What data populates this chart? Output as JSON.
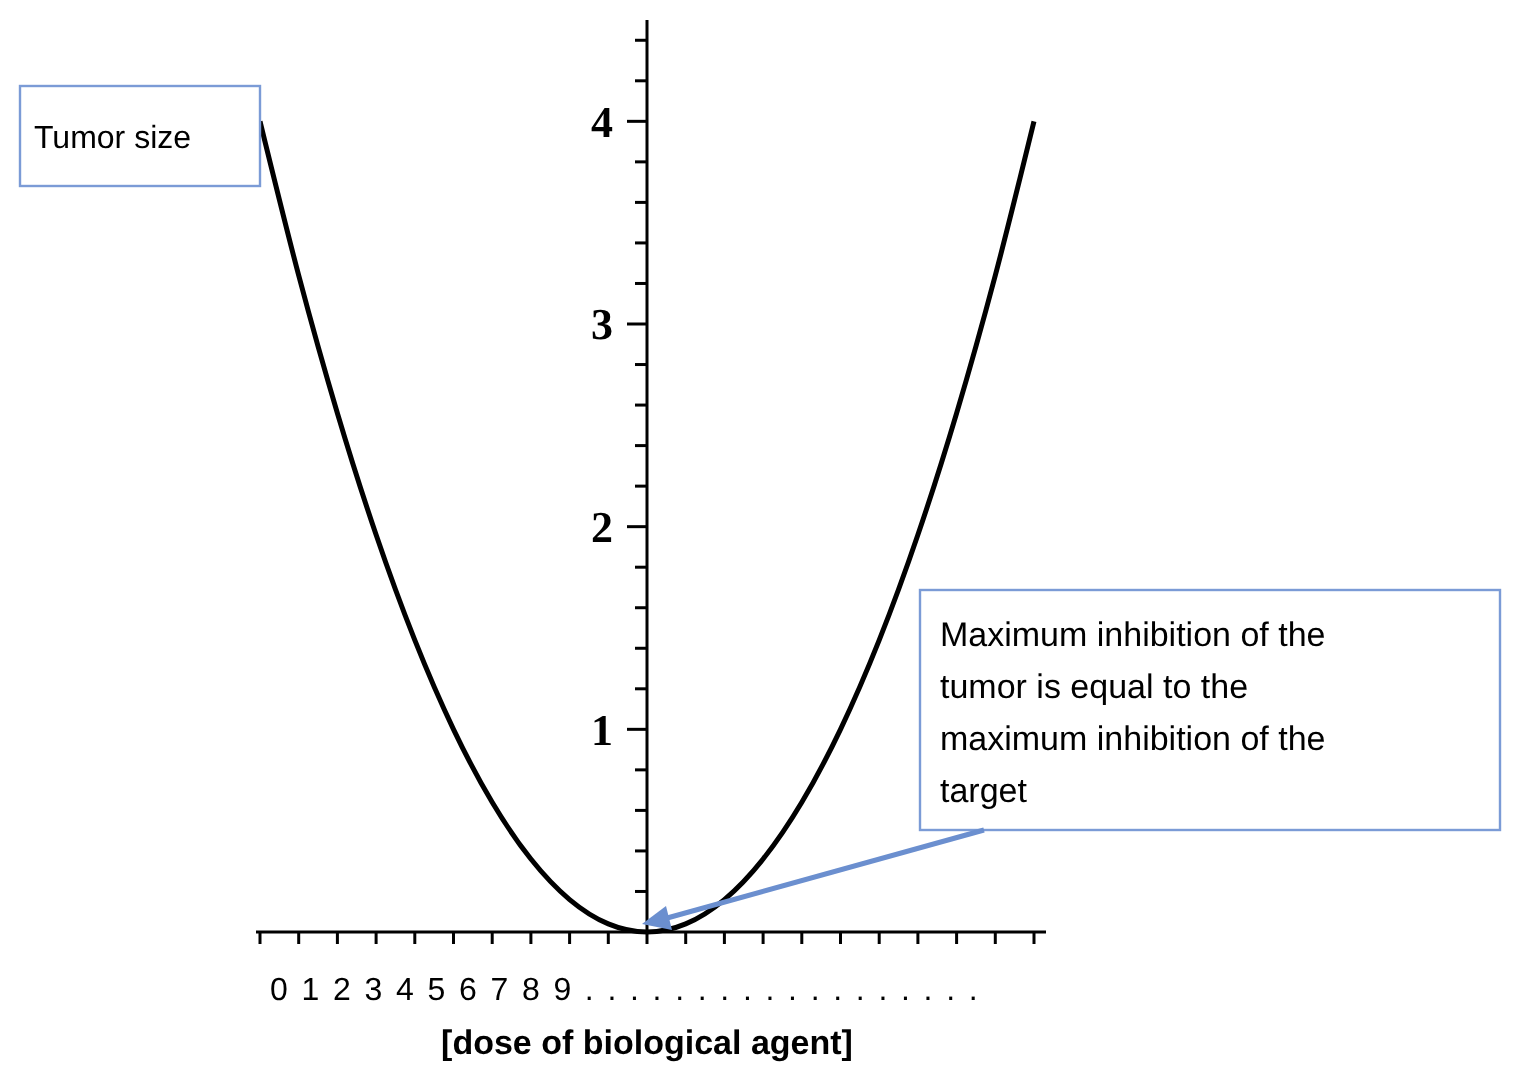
{
  "chart_data": {
    "type": "line",
    "xlabel": "[dose of biological agent]",
    "annotations": [
      "Tumor size",
      "Maximum inhibition of the tumor is equal to the maximum inhibition of the target",
      "0 1 2 3 4 5 6 7 8 9 . . . . . . . . . . . . . . . . . ."
    ],
    "categories": [
      null,
      null,
      null,
      null,
      null,
      null,
      null,
      null,
      null,
      null,
      null,
      null,
      null,
      null,
      null,
      null,
      null,
      null,
      null,
      null,
      null
    ],
    "series": [
      {
        "color": "#000000",
        "values": [
          4,
          3.24,
          2.56,
          1.96,
          1.44,
          1,
          0.64,
          0.36,
          0.16,
          0.04,
          0,
          0.04,
          0.16,
          0.36,
          0.64,
          1,
          1.44,
          1.96,
          2.56,
          3.24,
          4
        ]
      }
    ],
    "ylim": [
      0,
      4.5
    ],
    "yticks": [
      1,
      2,
      3,
      4
    ],
    "tick_labels": "y",
    "grid": false,
    "marker": "none",
    "line_style": "solid"
  }
}
